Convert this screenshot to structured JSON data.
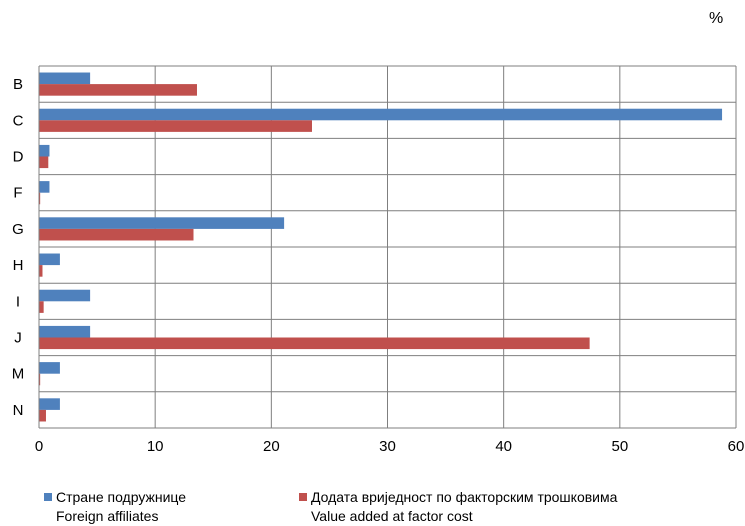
{
  "chart_data": {
    "type": "bar",
    "orientation": "horizontal",
    "unit_label": "%",
    "categories": [
      "B",
      "C",
      "D",
      "F",
      "G",
      "H",
      "I",
      "J",
      "M",
      "N"
    ],
    "series": [
      {
        "name": "Стране подружнице",
        "name_en": "Foreign affiliates",
        "color": "#4f81bd",
        "values": [
          4.4,
          58.8,
          0.9,
          0.9,
          21.1,
          1.8,
          4.4,
          4.4,
          1.8,
          1.8
        ]
      },
      {
        "name": "Додата вриједност по факторским трошковима",
        "name_en": "Value added at factor cost",
        "color": "#c0504d",
        "values": [
          13.6,
          23.5,
          0.8,
          0.1,
          13.3,
          0.3,
          0.4,
          47.4,
          0.1,
          0.6
        ]
      }
    ],
    "xlim": [
      0,
      60
    ],
    "xticks": [
      0,
      10,
      20,
      30,
      40,
      50,
      60
    ],
    "grid": true,
    "legend_position": "bottom"
  }
}
